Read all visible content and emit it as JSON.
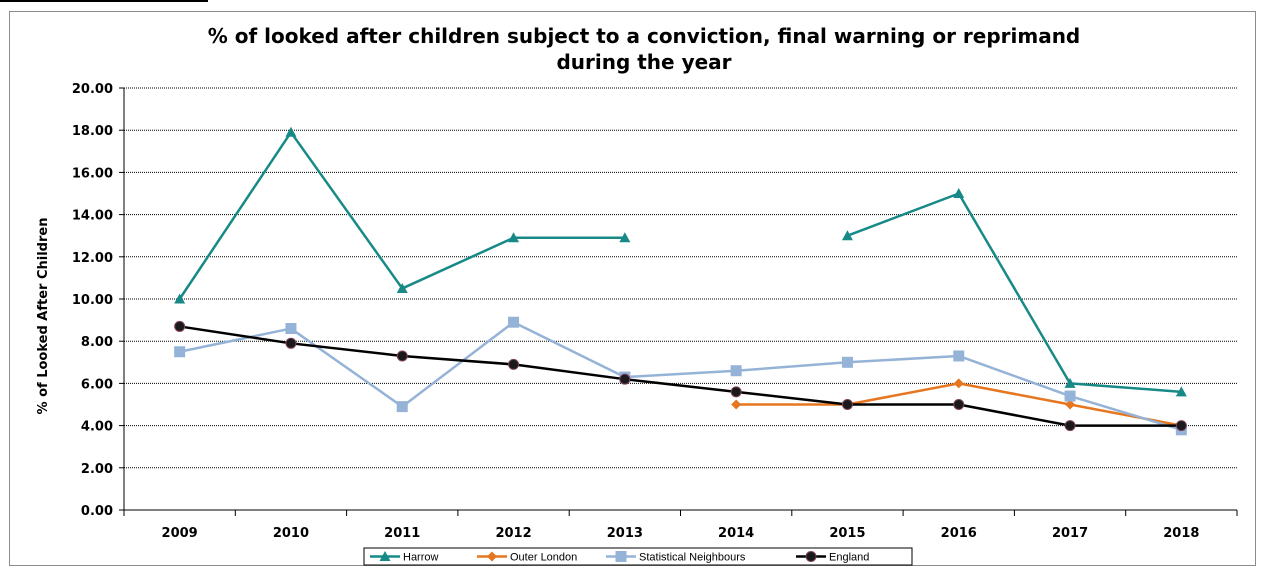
{
  "chart_data": {
    "type": "line",
    "title_line1": "% of looked after children subject to a conviction, final warning or reprimand",
    "title_line2": "during the year",
    "ylabel": "% of Looked After Children",
    "xlabel": "",
    "categories": [
      "2009",
      "2010",
      "2011",
      "2012",
      "2013",
      "2014",
      "2015",
      "2016",
      "2017",
      "2018"
    ],
    "ylim": [
      0,
      20
    ],
    "yticks": [
      "0.00",
      "2.00",
      "4.00",
      "6.00",
      "8.00",
      "10.00",
      "12.00",
      "14.00",
      "16.00",
      "18.00",
      "20.00"
    ],
    "grid": true,
    "legend_position": "bottom",
    "series": [
      {
        "name": "Harrow",
        "color": "#178a87",
        "marker": "triangle",
        "values": [
          10.0,
          17.9,
          10.5,
          12.9,
          12.9,
          null,
          13.0,
          15.0,
          6.0,
          5.6
        ]
      },
      {
        "name": "Outer London",
        "color": "#e6761f",
        "marker": "diamond",
        "values": [
          null,
          null,
          null,
          null,
          null,
          5.0,
          5.0,
          6.0,
          5.0,
          4.0
        ]
      },
      {
        "name": "Statistical Neighbours",
        "color": "#95b3d7",
        "marker": "square",
        "values": [
          7.5,
          8.6,
          4.9,
          8.9,
          6.3,
          6.6,
          7.0,
          7.3,
          5.4,
          3.8
        ]
      },
      {
        "name": "England",
        "color": "#000000",
        "marker": "circle",
        "values": [
          8.7,
          7.9,
          7.3,
          6.9,
          6.2,
          5.6,
          5.0,
          5.0,
          4.0,
          4.0
        ]
      }
    ]
  }
}
